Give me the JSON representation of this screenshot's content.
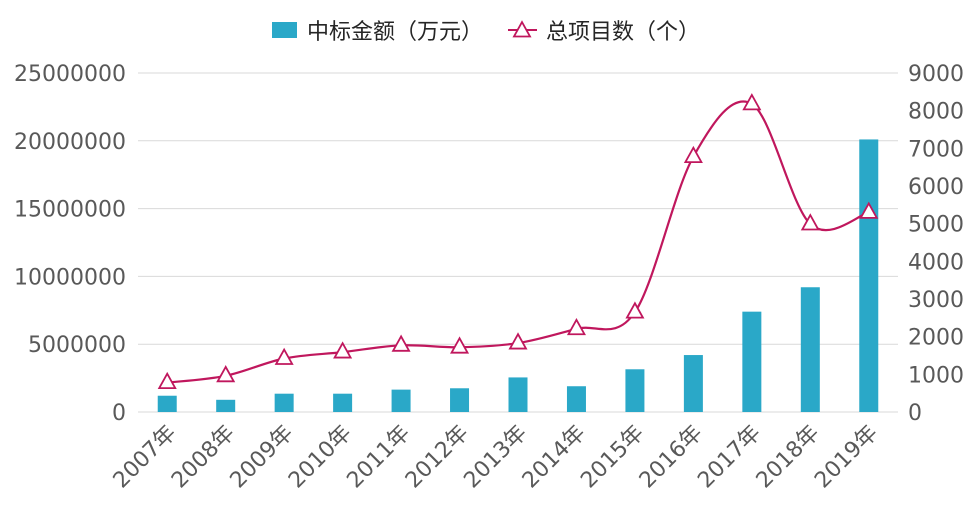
{
  "chart_data": {
    "type": "bar",
    "categories": [
      "2007年",
      "2008年",
      "2009年",
      "2010年",
      "2011年",
      "2012年",
      "2013年",
      "2014年",
      "2015年",
      "2016年",
      "2017年",
      "2018年",
      "2019年"
    ],
    "series": [
      {
        "name": "中标金额（万元）",
        "type": "bar",
        "axis": "left",
        "color": "#2aa8c8",
        "values": [
          1200000,
          900000,
          1350000,
          1350000,
          1650000,
          1750000,
          2550000,
          1900000,
          3150000,
          4200000,
          7400000,
          9200000,
          20100000
        ]
      },
      {
        "name": "总项目数（个）",
        "type": "line",
        "axis": "right",
        "color": "#c0175d",
        "marker": "triangle-open",
        "values": [
          780,
          960,
          1420,
          1590,
          1770,
          1720,
          1830,
          2210,
          2650,
          6780,
          8180,
          4990,
          5300
        ]
      }
    ],
    "y_left": {
      "min": 0,
      "max": 25000000,
      "ticks": [
        "0",
        "5000000",
        "10000000",
        "15000000",
        "20000000",
        "25000000"
      ]
    },
    "y_right": {
      "min": 0,
      "max": 9000,
      "ticks": [
        "0",
        "1000",
        "2000",
        "3000",
        "4000",
        "5000",
        "6000",
        "7000",
        "8000",
        "9000"
      ]
    },
    "grid": true,
    "legend_position": "top-center"
  }
}
